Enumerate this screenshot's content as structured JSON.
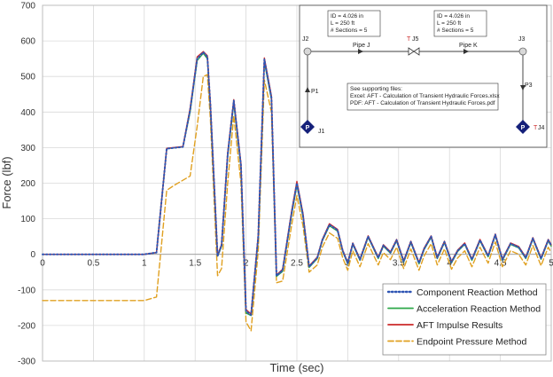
{
  "chart_data": {
    "type": "line",
    "xlabel": "Time (sec)",
    "ylabel": "Force (lbf)",
    "xlim": [
      0,
      5
    ],
    "ylim": [
      -300,
      700
    ],
    "xticks": [
      "0",
      "0.5",
      "1",
      "1.5",
      "2",
      "2.5",
      "3",
      "3.5",
      "4",
      "4.5",
      "5"
    ],
    "yticks": [
      "-300",
      "-200",
      "-100",
      "0",
      "100",
      "200",
      "300",
      "400",
      "500",
      "600",
      "700"
    ],
    "grid": true,
    "legend_position": "bottom-right",
    "series": [
      {
        "name": "Component Reaction Method",
        "color": "#2f55b4",
        "style": "dotted",
        "x": [
          0,
          1.0,
          1.12,
          1.22,
          1.25,
          1.38,
          1.45,
          1.52,
          1.58,
          1.62,
          1.65,
          1.72,
          1.76,
          1.82,
          1.88,
          1.95,
          2.0,
          2.05,
          2.12,
          2.18,
          2.25,
          2.3,
          2.36,
          2.45,
          2.5,
          2.56,
          2.62,
          2.7,
          2.75,
          2.82,
          2.9,
          2.95,
          3.0,
          3.05,
          3.12,
          3.2,
          3.3,
          3.35,
          3.42,
          3.48,
          3.55,
          3.62,
          3.7,
          3.75,
          3.82,
          3.88,
          3.95,
          4.02,
          4.08,
          4.15,
          4.22,
          4.3,
          4.38,
          4.45,
          4.52,
          4.6,
          4.68,
          4.75,
          4.82,
          4.9,
          4.97,
          5.0
        ],
        "y": [
          0,
          0,
          5,
          297,
          298,
          302,
          405,
          550,
          568,
          555,
          420,
          -5,
          25,
          280,
          432,
          250,
          -160,
          -170,
          50,
          548,
          440,
          -60,
          -45,
          120,
          200,
          110,
          -35,
          -10,
          40,
          83,
          68,
          10,
          -25,
          30,
          -15,
          50,
          -10,
          25,
          5,
          40,
          -20,
          35,
          -25,
          15,
          50,
          -10,
          35,
          -22,
          10,
          30,
          -15,
          40,
          -5,
          55,
          -15,
          30,
          20,
          -10,
          45,
          -12,
          40,
          25
        ]
      },
      {
        "name": "Acceleration Reaction Method",
        "color": "#2ea84a",
        "style": "solid",
        "x": [
          0,
          1.0,
          1.12,
          1.22,
          1.25,
          1.38,
          1.45,
          1.52,
          1.58,
          1.62,
          1.65,
          1.72,
          1.76,
          1.82,
          1.88,
          1.95,
          2.0,
          2.05,
          2.12,
          2.18,
          2.25,
          2.3,
          2.36,
          2.45,
          2.5,
          2.56,
          2.62,
          2.7,
          2.75,
          2.82,
          2.9,
          2.95,
          3.0,
          3.05,
          3.12,
          3.2,
          3.3,
          3.35,
          3.42,
          3.48,
          3.55,
          3.62,
          3.7,
          3.75,
          3.82,
          3.88,
          3.95,
          4.02,
          4.08,
          4.15,
          4.22,
          4.3,
          4.38,
          4.45,
          4.52,
          4.6,
          4.68,
          4.75,
          4.82,
          4.9,
          4.97,
          5.0
        ],
        "y": [
          0,
          0,
          5,
          297,
          298,
          302,
          400,
          545,
          565,
          550,
          415,
          -5,
          22,
          275,
          425,
          245,
          -165,
          -172,
          45,
          542,
          435,
          -62,
          -48,
          115,
          195,
          105,
          -37,
          -12,
          38,
          80,
          65,
          8,
          -27,
          28,
          -17,
          48,
          -12,
          23,
          3,
          38,
          -22,
          33,
          -27,
          13,
          48,
          -12,
          33,
          -24,
          8,
          28,
          -17,
          38,
          -7,
          53,
          -17,
          28,
          18,
          -12,
          43,
          -14,
          38,
          23
        ]
      },
      {
        "name": "AFT Impulse Results",
        "color": "#cc2a2a",
        "style": "solid",
        "x": [
          0,
          1.0,
          1.12,
          1.22,
          1.25,
          1.38,
          1.45,
          1.52,
          1.58,
          1.62,
          1.65,
          1.72,
          1.76,
          1.82,
          1.88,
          1.95,
          2.0,
          2.05,
          2.12,
          2.18,
          2.25,
          2.3,
          2.36,
          2.45,
          2.5,
          2.56,
          2.62,
          2.7,
          2.75,
          2.82,
          2.9,
          2.95,
          3.0,
          3.05,
          3.12,
          3.2,
          3.3,
          3.35,
          3.42,
          3.48,
          3.55,
          3.62,
          3.7,
          3.75,
          3.82,
          3.88,
          3.95,
          4.02,
          4.08,
          4.15,
          4.22,
          4.3,
          4.38,
          4.45,
          4.52,
          4.6,
          4.68,
          4.75,
          4.82,
          4.9,
          4.97,
          5.0
        ],
        "y": [
          0,
          0,
          5,
          298,
          299,
          303,
          410,
          555,
          570,
          558,
          425,
          -3,
          28,
          285,
          435,
          255,
          -155,
          -168,
          55,
          552,
          445,
          -58,
          -42,
          125,
          205,
          115,
          -33,
          -8,
          42,
          86,
          70,
          12,
          -23,
          32,
          -13,
          52,
          -8,
          27,
          7,
          42,
          -18,
          37,
          -23,
          17,
          52,
          -8,
          37,
          -20,
          12,
          32,
          -13,
          42,
          -3,
          57,
          -13,
          32,
          22,
          -8,
          47,
          -10,
          42,
          27
        ]
      },
      {
        "name": "Endpoint Pressure Method",
        "color": "#e0a020",
        "style": "dashed",
        "x": [
          0,
          1.0,
          1.12,
          1.22,
          1.3,
          1.45,
          1.52,
          1.58,
          1.62,
          1.65,
          1.72,
          1.76,
          1.82,
          1.88,
          1.95,
          2.0,
          2.05,
          2.12,
          2.18,
          2.25,
          2.3,
          2.36,
          2.45,
          2.5,
          2.56,
          2.62,
          2.7,
          2.75,
          2.82,
          2.9,
          2.95,
          3.0,
          3.05,
          3.12,
          3.2,
          3.3,
          3.35,
          3.42,
          3.48,
          3.55,
          3.62,
          3.7,
          3.75,
          3.82,
          3.88,
          3.95,
          4.02,
          4.08,
          4.15,
          4.22,
          4.3,
          4.38,
          4.45,
          4.52,
          4.6,
          4.68,
          4.75,
          4.82,
          4.9,
          4.97,
          5.0
        ],
        "y": [
          -130,
          -130,
          -120,
          180,
          195,
          220,
          360,
          500,
          505,
          380,
          -60,
          -40,
          200,
          390,
          200,
          -190,
          -215,
          10,
          490,
          400,
          -80,
          -75,
          85,
          165,
          80,
          -50,
          -30,
          20,
          60,
          45,
          -10,
          -45,
          10,
          -35,
          30,
          -30,
          5,
          -15,
          20,
          -40,
          15,
          -45,
          -5,
          30,
          -30,
          15,
          -42,
          -10,
          10,
          -35,
          20,
          -25,
          35,
          -35,
          10,
          0,
          -30,
          25,
          -32,
          20,
          5
        ]
      }
    ]
  },
  "inset": {
    "pipe_j_box": [
      "ID = 4.026 in",
      "L = 250 ft",
      "# Sections = 5"
    ],
    "pipe_k_box": [
      "ID = 4.026 in",
      "L = 250 ft",
      "# Sections = 5"
    ],
    "labels": {
      "j2": "J2",
      "pipe_j": "Pipe J",
      "j5": "J5",
      "j5_marker": "T",
      "pipe_k": "Pipe K",
      "j3": "J3",
      "p1": "P1",
      "p3": "P3",
      "j1": "J1",
      "j4": "J4",
      "j4_marker": "T",
      "pump": "P"
    },
    "files": [
      "See supporting files:",
      "Excel: AFT - Calculation of Transient Hydraulic Forces.xlsx",
      "PDF: AFT - Calculation of Transient Hydraulic Forces.pdf"
    ]
  }
}
